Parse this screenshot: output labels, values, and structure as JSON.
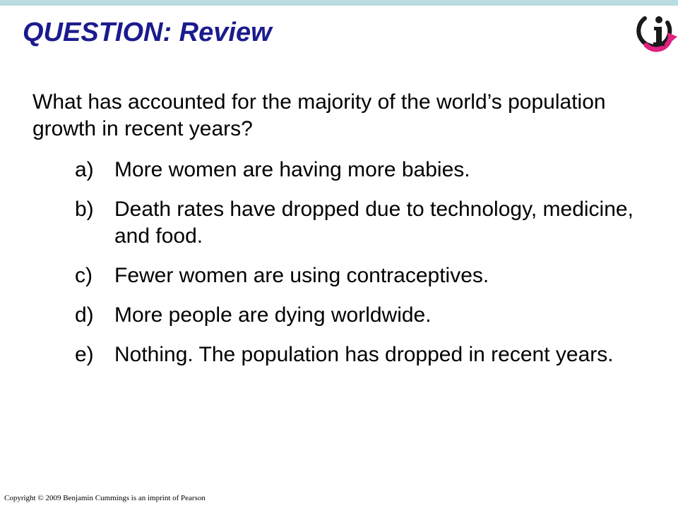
{
  "slide": {
    "title": "QUESTION: Review",
    "question": "What has accounted for the majority of the world’s population growth in recent years?",
    "options": [
      {
        "letter": "a)",
        "text": "More women are having more babies."
      },
      {
        "letter": "b)",
        "text": "Death rates have dropped due to technology, medicine, and food."
      },
      {
        "letter": "c)",
        "text": "Fewer women are using contraceptives."
      },
      {
        "letter": "d)",
        "text": "More people are dying worldwide."
      },
      {
        "letter": "e)",
        "text": "Nothing. The population has dropped in recent years."
      }
    ],
    "copyright": "Copyright © 2009 Benjamin Cummings is an imprint of Pearson"
  },
  "colors": {
    "title": "#1b1b8f",
    "top_bar": "#b9dde0",
    "logo_dark": "#1a1a1a",
    "logo_accent": "#e0207f"
  },
  "icons": {
    "logo": "info-i-logo"
  }
}
